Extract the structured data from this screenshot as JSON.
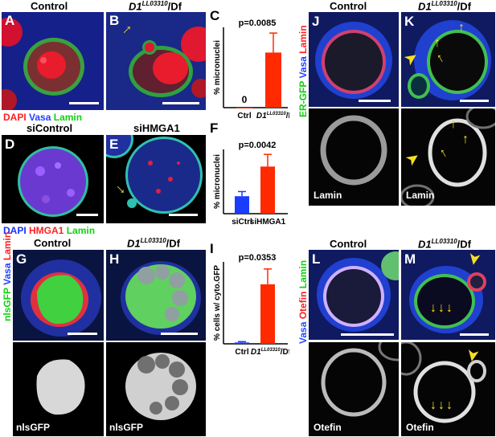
{
  "colors": {
    "red": "#ff2020",
    "blue": "#2040ff",
    "green": "#10d010",
    "arrow": "#f5e020",
    "dapi_blue": "#1530ff",
    "vasa_blue": "#2048ff"
  },
  "titles": {
    "control": "Control",
    "mutant_base": "D1",
    "mutant_sup": "LL03310",
    "mutant_suffix": "/Df",
    "sicontrol": "siControl",
    "sihmga1": "siHMGA1"
  },
  "panel_letters": {
    "A": "A",
    "B": "B",
    "C": "C",
    "D": "D",
    "E": "E",
    "F": "F",
    "G": "G",
    "H": "H",
    "I": "I",
    "J": "J",
    "K": "K",
    "L": "L",
    "M": "M"
  },
  "stain_labels": {
    "row1": [
      {
        "text": "DAPI",
        "color": "red"
      },
      {
        "text": "Vasa",
        "color": "blue"
      },
      {
        "text": "Lamin",
        "color": "green"
      }
    ],
    "row2": [
      {
        "text": "DAPI",
        "color": "blue"
      },
      {
        "text": "HMGA1",
        "color": "red"
      },
      {
        "text": "Lamin",
        "color": "green"
      }
    ],
    "row3": [
      {
        "text": "nlsGFP",
        "color": "green"
      },
      {
        "text": "Vasa",
        "color": "blue"
      },
      {
        "text": "Lamin",
        "color": "red"
      }
    ],
    "right_top": [
      {
        "text": "ER-GFP",
        "color": "green"
      },
      {
        "text": "Vasa",
        "color": "blue"
      },
      {
        "text": "Lamin",
        "color": "red"
      }
    ],
    "right_bottom": [
      {
        "text": "Vasa",
        "color": "blue"
      },
      {
        "text": "Otefin",
        "color": "red"
      },
      {
        "text": "Lamin",
        "color": "green"
      }
    ]
  },
  "grayscale_labels": {
    "G": "nlsGFP",
    "H": "nlsGFP",
    "J": "Lamin",
    "K": "Lamin",
    "L": "Otefin",
    "M": "Otefin"
  },
  "chart_data": [
    {
      "panel": "C",
      "type": "bar",
      "categories": [
        "Ctrl",
        "D1 LL03310/Df"
      ],
      "values": [
        0,
        9.6
      ],
      "errors": [
        0,
        3.4
      ],
      "value_labels": [
        "0",
        ""
      ],
      "colors": [
        "#ff2a00",
        "#ff2a00"
      ],
      "ylabel": "% micronuclei",
      "pvalue": "p=0.0085",
      "ylim": [
        0,
        14
      ]
    },
    {
      "panel": "F",
      "type": "bar",
      "categories": [
        "siCtrl",
        "siHMGA1"
      ],
      "values": [
        4.9,
        13.2
      ],
      "errors": [
        1.3,
        3.4
      ],
      "colors": [
        "#1a3cff",
        "#ff2a00"
      ],
      "ylabel": "% micronuclei",
      "pvalue": "p=0.0042",
      "ylim": [
        0,
        18
      ]
    },
    {
      "panel": "I",
      "type": "bar",
      "categories": [
        "Ctrl",
        "D1 LL03310/Df"
      ],
      "values": [
        0.5,
        21.8
      ],
      "errors": [
        0.3,
        5.6
      ],
      "colors": [
        "#1a3cff",
        "#ff2a00"
      ],
      "ylabel": "% cells w/ cyto.GFP",
      "pvalue": "p=0.0353",
      "ylim": [
        0,
        30
      ]
    }
  ]
}
